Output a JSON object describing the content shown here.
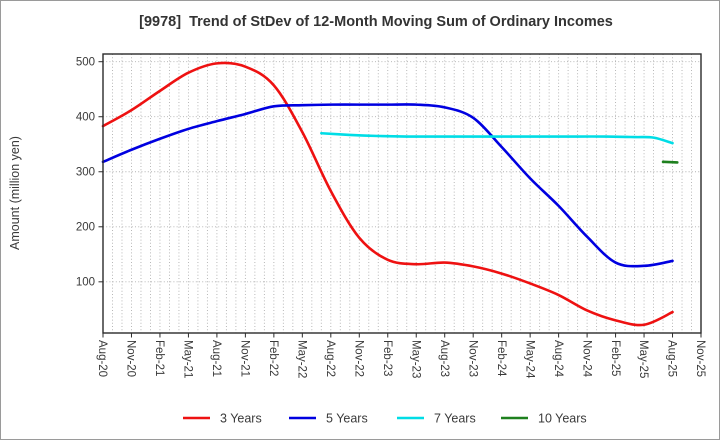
{
  "window": {
    "background": "#ffffff",
    "outer_border_color": "#9a9a9a"
  },
  "chart_data": {
    "type": "line",
    "title": "[9978]  Trend of StDev of 12-Month Moving Sum of Ordinary Incomes",
    "ylabel": "Amount (million yen)",
    "xlabel": "",
    "x_tick_labels": [
      "Aug-20",
      "Nov-20",
      "Feb-21",
      "May-21",
      "Aug-21",
      "Nov-21",
      "Feb-22",
      "May-22",
      "Aug-22",
      "Nov-22",
      "Feb-23",
      "May-23",
      "Aug-23",
      "Nov-23",
      "Feb-24",
      "May-24",
      "Aug-24",
      "Nov-24",
      "Feb-25",
      "May-25",
      "Aug-25",
      "Nov-25"
    ],
    "x_tick_months": [
      0,
      3,
      6,
      9,
      12,
      15,
      18,
      21,
      24,
      27,
      30,
      33,
      36,
      39,
      42,
      45,
      48,
      51,
      54,
      57,
      60,
      63
    ],
    "months_total": 63,
    "x_range": [
      "Aug-20",
      "Nov-25"
    ],
    "ylim": [
      7,
      514
    ],
    "yticks": [
      100,
      200,
      300,
      400,
      500
    ],
    "grid": {
      "visible": true,
      "style": "dotted",
      "color": "#b0b0b0",
      "vertical_every_month": true
    },
    "axis_color": "#2b2b2b",
    "tick_text_color": "#3a3a3a",
    "legend": {
      "position": "bottom",
      "labels": [
        "3 Years",
        "5 Years",
        "7 Years",
        "10 Years"
      ]
    },
    "series": [
      {
        "name": "3 Years",
        "color": "#ee1111",
        "x_months": [
          0,
          3,
          6,
          9,
          12,
          15,
          18,
          21,
          24,
          27,
          30,
          33,
          36,
          39,
          42,
          45,
          48,
          51,
          54,
          57,
          60
        ],
        "values": [
          383,
          412,
          447,
          480,
          497,
          491,
          457,
          372,
          265,
          180,
          140,
          132,
          135,
          128,
          115,
          97,
          76,
          48,
          30,
          22,
          45
        ]
      },
      {
        "name": "5 Years",
        "color": "#0000e0",
        "x_months": [
          0,
          3,
          6,
          9,
          12,
          15,
          18,
          21,
          24,
          27,
          30,
          33,
          36,
          39,
          42,
          45,
          48,
          51,
          54,
          57,
          60
        ],
        "values": [
          318,
          340,
          360,
          378,
          392,
          405,
          419,
          421,
          422,
          422,
          422,
          422,
          417,
          398,
          345,
          288,
          238,
          182,
          135,
          129,
          138
        ]
      },
      {
        "name": "7 Years",
        "color": "#00dde6",
        "x_months": [
          23,
          26,
          29,
          32,
          35,
          38,
          41,
          44,
          47,
          50,
          53,
          56,
          58,
          60
        ],
        "values": [
          370,
          367,
          365,
          364,
          364,
          364,
          364,
          364,
          364,
          364,
          364,
          363,
          362,
          352
        ]
      },
      {
        "name": "10 Years",
        "color": "#1e801e",
        "x_months": [
          59,
          60.5
        ],
        "values": [
          318,
          317
        ]
      }
    ]
  }
}
